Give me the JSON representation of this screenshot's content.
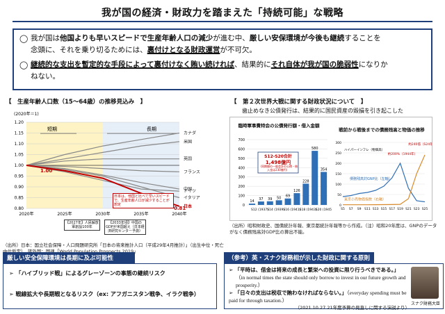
{
  "title": "我が国の経済・財政力を踏まえた「持続可能」な戦略",
  "summary": {
    "p1": {
      "mark": "◯",
      "t1": "我が国は",
      "b1": "他国よりも早いスピードで生産年齢人口の減少",
      "t2": "が進む中、",
      "b2": "厳しい安保環境が今後も継続",
      "t3": "することを",
      "t4": "念頭に、それを乗り切るためには、",
      "b3": "裏付けとなる財政運営",
      "t5": "が不可欠。"
    },
    "p2": {
      "mark": "◯",
      "b1": "継続的な支出を暫定的な手段によって裏付けなく賄い続ければ",
      "t1": "、結果的に",
      "b2": "それ自体が我が国の脆弱性",
      "t2": "になりか",
      "t3": "ねない。"
    }
  },
  "left_chart": {
    "heading": "【　生産年齢人口数（15〜64歳）の推移見込み　】",
    "unit_note": "(2020年＝1)",
    "band_short": "短期",
    "band_long": "長期",
    "start_label": "1.00",
    "end_label": "0.81",
    "note_box": "日本は、他国と比べて早いスピードで、生産年齢人口が減少することが想定",
    "note_2027": "【2027年】人民解放軍創設100年",
    "note_2033": "【2033年頃】中国のGDPが米国超え（日本経済研究センター予測）",
    "source": "（出所）日本：国立社会保障・人口問題研究所「日本の将来推計人口（平成29年4月推計）」（出生中位・死亡中位仮定）、諸外国：国連「World Population Prospects 2019」"
  },
  "right_panel": {
    "heading": "【　第２次世界大戦に関する財政状況について　】",
    "subheading": "歯止めなき公債発行は、結果的に国民資産の毀損を引き起こした",
    "bar_title": "臨時軍事費特会の公債発行額・借入金額",
    "bar_callout_title": "S12-S20合計",
    "bar_callout_value": "1,498億円",
    "bar_callout_note1": "（同期間の一般会計の公債・借入金は230億円）",
    "line_title": "戦前から戦後までの債務残高と物価の推移",
    "line_labels": {
      "hyper": "ハイパーインフレ（物価高）",
      "peak1": "約200%（1944年）",
      "peak2": "約240倍（S24年）",
      "debt": "債務残高対GNP比（左軸）",
      "price": "東京小売物価指数（右軸）"
    },
    "source": "（出所）昭和財政史、国債統計年報、東京都統計年報等から作成。（注）昭和20年度は、GNPのデータがなく債務残高対GDP比の算出不能。"
  },
  "security_box": {
    "heading": "厳しい安全保障環境は長期に及ぶ可能性",
    "item1": "「ハイブリッド戦」によるグレーゾーンの事態の継続リスク",
    "item2": "戦線拡大や長期戦となるリスク（ex: アフガニスタン戦争、イラク戦争）"
  },
  "reference_box": {
    "heading": "（参考）英・スナク財務相が示した財政に関する原則",
    "q1": "「平時は、借金は将来の成長と繁栄への投資に限り行うべきである。」",
    "q1_en": "（in normal times the state should only borrow to invest in our future growth and prosperity.）",
    "q2": "「日々の支出は税収で賄わなければならない。」",
    "q2_en": "（everyday spending must be paid for through taxation.）",
    "footnote": "（2021.10.27 21年度予算の見直しに関する演説より）",
    "photo_caption": "スナク財務大臣"
  },
  "chart_data": [
    {
      "type": "line",
      "title": "生産年齢人口数（15〜64歳）の推移見込み",
      "x": [
        2020,
        2025,
        2030,
        2035,
        2040
      ],
      "xlabels": [
        "2020年",
        "2025年",
        "2030年",
        "2035年",
        "2040年"
      ],
      "ylim": [
        0.8,
        1.2
      ],
      "yticks": [
        "0.80",
        "0.85",
        "0.90",
        "0.95",
        "1.00",
        "1.05",
        "1.10",
        "1.15",
        "1.20"
      ],
      "series": [
        {
          "name": "カナダ",
          "values": [
            1.0,
            1.05,
            1.09,
            1.12,
            1.15
          ]
        },
        {
          "name": "米国",
          "values": [
            1.0,
            1.03,
            1.06,
            1.09,
            1.11
          ]
        },
        {
          "name": "英国",
          "values": [
            1.0,
            1.02,
            1.03,
            1.03,
            1.03
          ]
        },
        {
          "name": "フランス",
          "values": [
            1.0,
            0.995,
            0.985,
            0.975,
            0.97
          ]
        },
        {
          "name": "中国",
          "values": [
            1.0,
            0.985,
            0.955,
            0.92,
            0.89
          ]
        },
        {
          "name": "ドイツ",
          "values": [
            1.0,
            0.97,
            0.93,
            0.89,
            0.88
          ]
        },
        {
          "name": "イタリア",
          "values": [
            1.0,
            0.98,
            0.95,
            0.9,
            0.85
          ]
        },
        {
          "name": "日本",
          "values": [
            1.0,
            0.975,
            0.94,
            0.87,
            0.81
          ]
        }
      ]
    },
    {
      "type": "bar",
      "title": "臨時軍事費特会の公債発行額・借入金額",
      "categories": [
        "S12\n(1937)",
        "S13\n(1938)",
        "S14\n(1939)",
        "S16\n(1941)",
        "S17\n(1942)",
        "S18\n(1943)",
        "S19\n(1944)",
        "S20\n(1945)"
      ],
      "tick_labels": [
        "S12 (1937)",
        "S14 (1939)",
        "S16 (1941)",
        "S18 (1943)",
        "S20 (1945)"
      ],
      "values": [
        14,
        37,
        39,
        50,
        69,
        126,
        228,
        580
      ],
      "extra_value": 354,
      "ylim": [
        0,
        700
      ],
      "yticks": [
        "0",
        "100",
        "200",
        "300",
        "400",
        "500",
        "600",
        "700"
      ]
    },
    {
      "type": "line",
      "title": "戦前から戦後までの債務残高と物価の推移",
      "xlabels": [
        "S5",
        "S7",
        "S9",
        "S11",
        "S13",
        "S15",
        "S17",
        "S19",
        "S21",
        "S23",
        "S25"
      ],
      "left_ylim": [
        0,
        300
      ],
      "right_ylim": [
        0,
        300
      ],
      "left_yticks": [
        "0",
        "50",
        "100",
        "150",
        "200",
        "250",
        "300"
      ],
      "series": [
        {
          "name": "債務残高対GNP比",
          "values": [
            40,
            45,
            55,
            60,
            70,
            90,
            130,
            200,
            80,
            20,
            15
          ]
        },
        {
          "name": "東京小売物価指数",
          "values": [
            1,
            1,
            1,
            1.1,
            1.3,
            1.7,
            2,
            3,
            30,
            150,
            240
          ]
        }
      ]
    }
  ]
}
